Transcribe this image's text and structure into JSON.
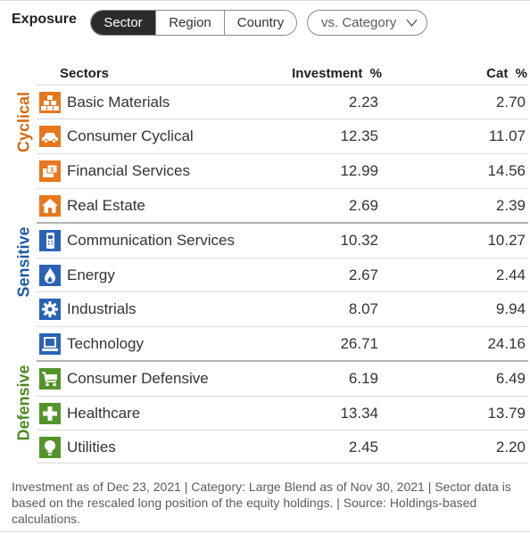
{
  "title": "Exposure",
  "tabs": [
    "Sector",
    "Region",
    "Country"
  ],
  "active_tab": "Sector",
  "compare_dropdown": {
    "label": "vs. Category"
  },
  "headers": {
    "sectors": "Sectors",
    "investment": "Investment  %",
    "cat": "Cat  %"
  },
  "groups": [
    {
      "label": "Cyclical",
      "color": "#d5690f"
    },
    {
      "label": "Sensitive",
      "color": "#1f5aa8"
    },
    {
      "label": "Defensive",
      "color": "#4c8a1f"
    }
  ],
  "colors": {
    "cyclical": "#e8771e",
    "sensitive": "#2a63b5",
    "defensive": "#53942b"
  },
  "rows": [
    {
      "name": "Basic Materials",
      "investment": "2.23",
      "cat": "2.70",
      "icon": "blocks-icon"
    },
    {
      "name": "Consumer Cyclical",
      "investment": "12.35",
      "cat": "11.07",
      "icon": "car-icon"
    },
    {
      "name": "Financial Services",
      "investment": "12.99",
      "cat": "14.56",
      "icon": "money-icon"
    },
    {
      "name": "Real Estate",
      "investment": "2.69",
      "cat": "2.39",
      "icon": "house-icon"
    },
    {
      "name": "Communication Services",
      "investment": "10.32",
      "cat": "10.27",
      "icon": "phone-icon"
    },
    {
      "name": "Energy",
      "investment": "2.67",
      "cat": "2.44",
      "icon": "flame-icon"
    },
    {
      "name": "Industrials",
      "investment": "8.07",
      "cat": "9.94",
      "icon": "gear-icon"
    },
    {
      "name": "Technology",
      "investment": "26.71",
      "cat": "24.16",
      "icon": "computer-icon"
    },
    {
      "name": "Consumer Defensive",
      "investment": "6.19",
      "cat": "6.49",
      "icon": "cart-icon"
    },
    {
      "name": "Healthcare",
      "investment": "13.34",
      "cat": "13.79",
      "icon": "cross-icon"
    },
    {
      "name": "Utilities",
      "investment": "2.45",
      "cat": "2.20",
      "icon": "bulb-icon"
    }
  ],
  "footnote": "Investment as of Dec 23, 2021 | Category: Large Blend as of Nov 30, 2021 | Sector data is based on the rescaled long position of the equity holdings. | Source: Holdings-based calculations."
}
